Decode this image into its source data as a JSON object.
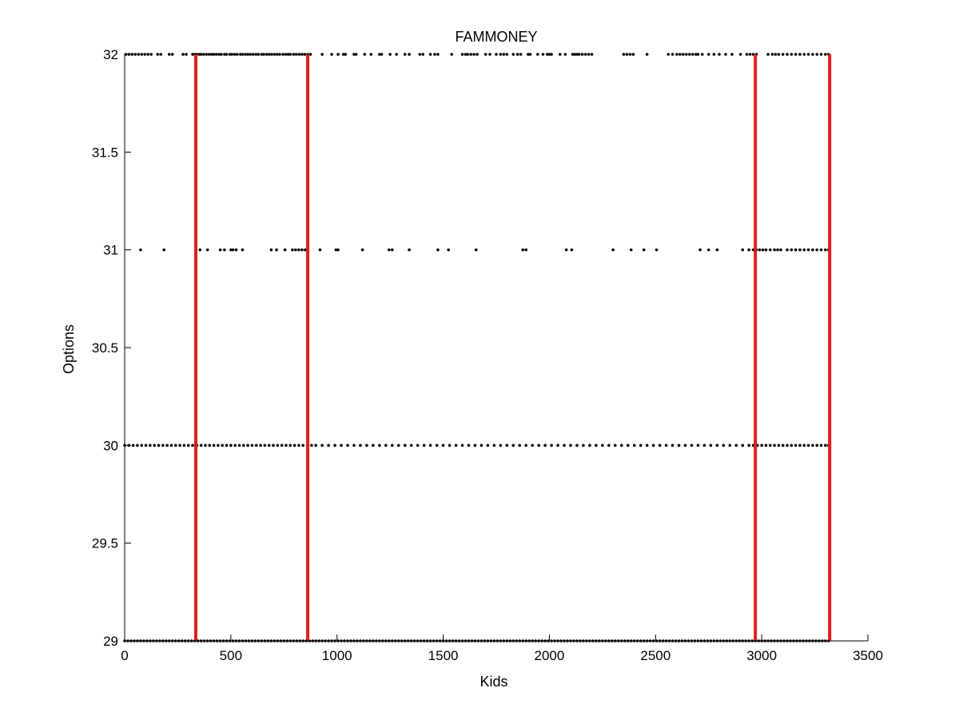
{
  "chart_data": {
    "type": "scatter",
    "title": "FAMMONEY",
    "xlabel": "Kids",
    "ylabel": "Options",
    "xlim": [
      0,
      3500
    ],
    "ylim": [
      29,
      32
    ],
    "xticks": [
      0,
      500,
      1000,
      1500,
      2000,
      2500,
      3000,
      3500
    ],
    "xtick_labels": [
      "0",
      "500",
      "1000",
      "1500",
      "2000",
      "2500",
      "3000",
      "3500"
    ],
    "yticks": [
      29,
      29.5,
      30,
      30.5,
      31,
      31.5,
      32
    ],
    "ytick_labels": [
      "29",
      "29.5",
      "30",
      "30.5",
      "31",
      "31.5",
      "32"
    ],
    "grid": false,
    "marker_color": "#000000",
    "vline_color": "#e41a1c",
    "vertical_lines": [
      335,
      862,
      2970,
      3320
    ],
    "series": [
      {
        "y": 32,
        "x": [
          5,
          20,
          35,
          50,
          65,
          80,
          95,
          110,
          125,
          155,
          170,
          210,
          225,
          275,
          290,
          320,
          330,
          340,
          352,
          360,
          372,
          385,
          398,
          410,
          420,
          432,
          445,
          455,
          470,
          480,
          495,
          505,
          518,
          530,
          545,
          555,
          568,
          580,
          592,
          605,
          618,
          630,
          645,
          655,
          668,
          680,
          692,
          705,
          718,
          730,
          745,
          758,
          770,
          780,
          795,
          808,
          822,
          835,
          848,
          862,
          875,
          930,
          975,
          1005,
          1030,
          1040,
          1080,
          1090,
          1130,
          1160,
          1200,
          1210,
          1250,
          1280,
          1320,
          1340,
          1390,
          1405,
          1440,
          1460,
          1475,
          1540,
          1590,
          1605,
          1615,
          1630,
          1645,
          1660,
          1700,
          1720,
          1750,
          1770,
          1785,
          1800,
          1830,
          1850,
          1865,
          1900,
          1910,
          1945,
          1970,
          1990,
          2000,
          2010,
          2050,
          2075,
          2110,
          2120,
          2130,
          2140,
          2155,
          2170,
          2185,
          2200,
          2350,
          2365,
          2380,
          2395,
          2460,
          2560,
          2580,
          2600,
          2615,
          2630,
          2645,
          2660,
          2675,
          2690,
          2700,
          2720,
          2750,
          2775,
          2800,
          2830,
          2860,
          2900,
          2930,
          2945,
          2960,
          2975,
          3030,
          3050,
          3065,
          3080,
          3100,
          3120,
          3140,
          3160,
          3180,
          3200,
          3220,
          3240,
          3260,
          3280,
          3300,
          3315
        ]
      },
      {
        "y": 31,
        "x": [
          75,
          185,
          335,
          355,
          390,
          450,
          470,
          500,
          510,
          525,
          555,
          690,
          715,
          755,
          790,
          805,
          820,
          835,
          850,
          920,
          995,
          1005,
          1120,
          1245,
          1260,
          1340,
          1475,
          1525,
          1655,
          1875,
          1890,
          2080,
          2105,
          2300,
          2385,
          2445,
          2505,
          2710,
          2750,
          2790,
          2910,
          2940,
          2960,
          2975,
          2990,
          3005,
          3020,
          3040,
          3060,
          3075,
          3090,
          3120,
          3140,
          3160,
          3180,
          3200,
          3220,
          3240,
          3260,
          3280,
          3300,
          3315
        ]
      },
      {
        "y": 30,
        "x": [
          0,
          20,
          40,
          60,
          80,
          100,
          120,
          140,
          160,
          180,
          200,
          220,
          240,
          260,
          280,
          300,
          320,
          340,
          360,
          380,
          400,
          420,
          440,
          460,
          480,
          500,
          520,
          540,
          560,
          580,
          600,
          620,
          640,
          660,
          680,
          700,
          720,
          740,
          760,
          780,
          800,
          820,
          840,
          860,
          880,
          900,
          930,
          960,
          990,
          1020,
          1050,
          1080,
          1110,
          1140,
          1170,
          1200,
          1230,
          1260,
          1290,
          1320,
          1350,
          1380,
          1410,
          1440,
          1470,
          1500,
          1530,
          1560,
          1590,
          1620,
          1650,
          1680,
          1710,
          1740,
          1770,
          1800,
          1830,
          1860,
          1890,
          1920,
          1950,
          1980,
          2010,
          2040,
          2070,
          2100,
          2130,
          2160,
          2190,
          2220,
          2250,
          2280,
          2310,
          2340,
          2370,
          2400,
          2430,
          2460,
          2490,
          2520,
          2550,
          2580,
          2610,
          2640,
          2670,
          2700,
          2730,
          2760,
          2790,
          2820,
          2850,
          2880,
          2910,
          2940,
          2960,
          2980,
          3000,
          3020,
          3040,
          3060,
          3080,
          3100,
          3120,
          3140,
          3160,
          3180,
          3200,
          3220,
          3240,
          3260,
          3280,
          3300,
          3315
        ]
      },
      {
        "y": 29,
        "x": [
          0,
          15,
          30,
          45,
          60,
          75,
          90,
          105,
          120,
          135,
          150,
          165,
          180,
          195,
          210,
          225,
          240,
          255,
          270,
          285,
          300,
          315,
          330,
          345,
          360,
          375,
          390,
          405,
          420,
          435,
          450,
          465,
          480,
          495,
          510,
          525,
          540,
          555,
          570,
          585,
          600,
          615,
          630,
          645,
          660,
          675,
          690,
          705,
          720,
          735,
          750,
          765,
          780,
          795,
          810,
          825,
          840,
          855,
          870,
          885,
          900,
          915,
          930,
          945,
          960,
          975,
          990,
          1005,
          1020,
          1035,
          1050,
          1065,
          1080,
          1095,
          1110,
          1125,
          1140,
          1155,
          1170,
          1185,
          1200,
          1215,
          1230,
          1245,
          1260,
          1275,
          1290,
          1305,
          1320,
          1335,
          1350,
          1365,
          1380,
          1395,
          1410,
          1425,
          1440,
          1455,
          1470,
          1485,
          1500,
          1515,
          1530,
          1545,
          1560,
          1575,
          1590,
          1605,
          1620,
          1635,
          1650,
          1665,
          1680,
          1695,
          1710,
          1725,
          1740,
          1755,
          1770,
          1785,
          1800,
          1815,
          1830,
          1845,
          1860,
          1875,
          1890,
          1905,
          1920,
          1935,
          1950,
          1965,
          1980,
          1995,
          2010,
          2025,
          2040,
          2055,
          2070,
          2085,
          2100,
          2115,
          2130,
          2145,
          2160,
          2175,
          2190,
          2205,
          2220,
          2235,
          2250,
          2265,
          2280,
          2295,
          2310,
          2325,
          2340,
          2355,
          2370,
          2385,
          2400,
          2415,
          2430,
          2445,
          2460,
          2475,
          2490,
          2505,
          2520,
          2535,
          2550,
          2565,
          2580,
          2595,
          2610,
          2625,
          2640,
          2655,
          2670,
          2685,
          2700,
          2715,
          2730,
          2745,
          2760,
          2775,
          2790,
          2805,
          2820,
          2835,
          2850,
          2865,
          2880,
          2895,
          2910,
          2925,
          2940,
          2955,
          2970,
          2985,
          3000,
          3015,
          3030,
          3045,
          3060,
          3075,
          3090,
          3105,
          3120,
          3135,
          3150,
          3165,
          3180,
          3195,
          3210,
          3225,
          3240,
          3255,
          3270,
          3285,
          3300,
          3315
        ]
      }
    ]
  }
}
